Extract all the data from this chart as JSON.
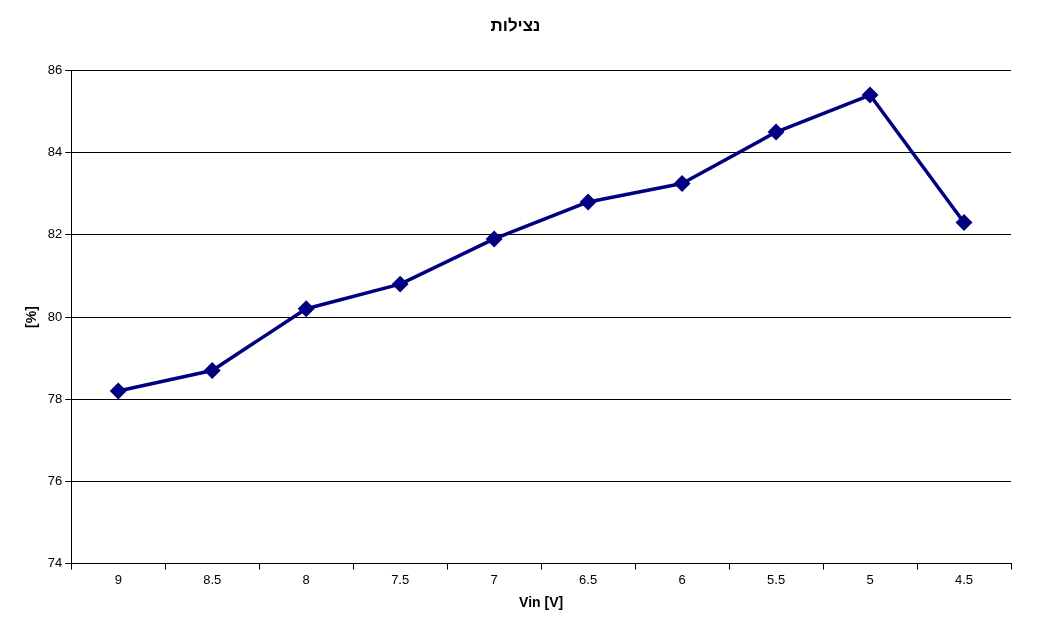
{
  "chart_data": {
    "type": "line",
    "title": "נצילות",
    "xlabel": "Vin [V]",
    "ylabel": "[%]",
    "categories": [
      "9",
      "8.5",
      "8",
      "7.5",
      "7",
      "6.5",
      "6",
      "5.5",
      "5",
      "4.5"
    ],
    "series": [
      {
        "color": "#000080",
        "values": [
          78.2,
          78.7,
          80.2,
          80.8,
          81.9,
          82.8,
          83.25,
          84.5,
          85.4,
          82.3
        ]
      }
    ],
    "ylim": [
      74,
      86
    ],
    "yticks": [
      74,
      76,
      78,
      80,
      82,
      84,
      86
    ],
    "grid": "y",
    "legend": false,
    "marker": "diamond",
    "line_style": "solid"
  }
}
